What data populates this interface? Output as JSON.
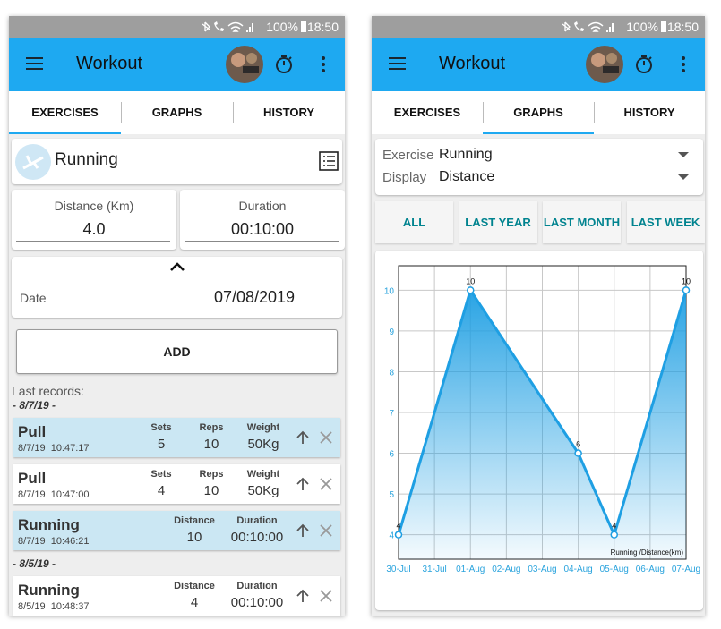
{
  "screens": [
    {
      "status": {
        "battery": "100%",
        "time": "18:50"
      },
      "app_bar": {
        "title": "Workout"
      },
      "tabs": [
        "EXERCISES",
        "GRAPHS",
        "HISTORY"
      ],
      "selected_tab": 0
    },
    {
      "status": {
        "battery": "100%",
        "time": "18:50"
      },
      "app_bar": {
        "title": "Workout"
      },
      "tabs": [
        "EXERCISES",
        "GRAPHS",
        "HISTORY"
      ],
      "selected_tab": 1
    }
  ],
  "exercise_form": {
    "exercise": "Running",
    "fields": [
      {
        "label": "Distance (Km)",
        "value": "4.0"
      },
      {
        "label": "Duration",
        "value": "00:10:00"
      }
    ],
    "date": {
      "label": "Date",
      "value": "07/08/2019"
    },
    "button": "ADD"
  },
  "records": {
    "title": "Last records:",
    "groups": [
      {
        "date": "- 8/7/19 -",
        "records": [
          {
            "name": "Pull",
            "time": "8/7/19  10:47:17",
            "highlighted": true,
            "fields": [
              {
                "label": "Sets",
                "value": "5"
              },
              {
                "label": "Reps",
                "value": "10"
              },
              {
                "label": "Weight",
                "value": "50Kg"
              }
            ]
          },
          {
            "name": "Pull",
            "time": "8/7/19  10:47:00",
            "highlighted": false,
            "fields": [
              {
                "label": "Sets",
                "value": "4"
              },
              {
                "label": "Reps",
                "value": "10"
              },
              {
                "label": "Weight",
                "value": "50Kg"
              }
            ]
          },
          {
            "name": "Running",
            "time": "8/7/19  10:46:21",
            "highlighted": true,
            "fields": [
              {
                "label": "Distance",
                "value": "10"
              },
              {
                "label": "Duration",
                "value": "00:10:00"
              }
            ]
          }
        ]
      },
      {
        "date": "- 8/5/19 -",
        "records": [
          {
            "name": "Running",
            "time": "8/5/19  10:48:37",
            "highlighted": false,
            "fields": [
              {
                "label": "Distance",
                "value": "4"
              },
              {
                "label": "Duration",
                "value": "00:10:00"
              }
            ]
          }
        ]
      }
    ]
  },
  "graph_filters": [
    {
      "label": "Exercise",
      "value": "Running"
    },
    {
      "label": "Display",
      "value": "Distance"
    }
  ],
  "range_buttons": [
    "ALL",
    "LAST YEAR",
    "LAST MONTH",
    "LAST WEEK"
  ],
  "chart_data": {
    "type": "line",
    "categories": [
      "30-Jul",
      "31-Jul",
      "01-Aug",
      "02-Aug",
      "03-Aug",
      "04-Aug",
      "05-Aug",
      "06-Aug",
      "07-Aug"
    ],
    "x": [
      "30-Jul",
      "01-Aug",
      "04-Aug",
      "05-Aug",
      "07-Aug"
    ],
    "series": [
      {
        "name": "Running /Distance(km)",
        "color": "#1e9fe3",
        "values": [
          4,
          10,
          6,
          4,
          10
        ]
      }
    ],
    "ylim": [
      3.4,
      10.6
    ],
    "yticks": [
      4,
      5,
      6,
      7,
      8,
      9,
      10
    ],
    "grid": true
  }
}
